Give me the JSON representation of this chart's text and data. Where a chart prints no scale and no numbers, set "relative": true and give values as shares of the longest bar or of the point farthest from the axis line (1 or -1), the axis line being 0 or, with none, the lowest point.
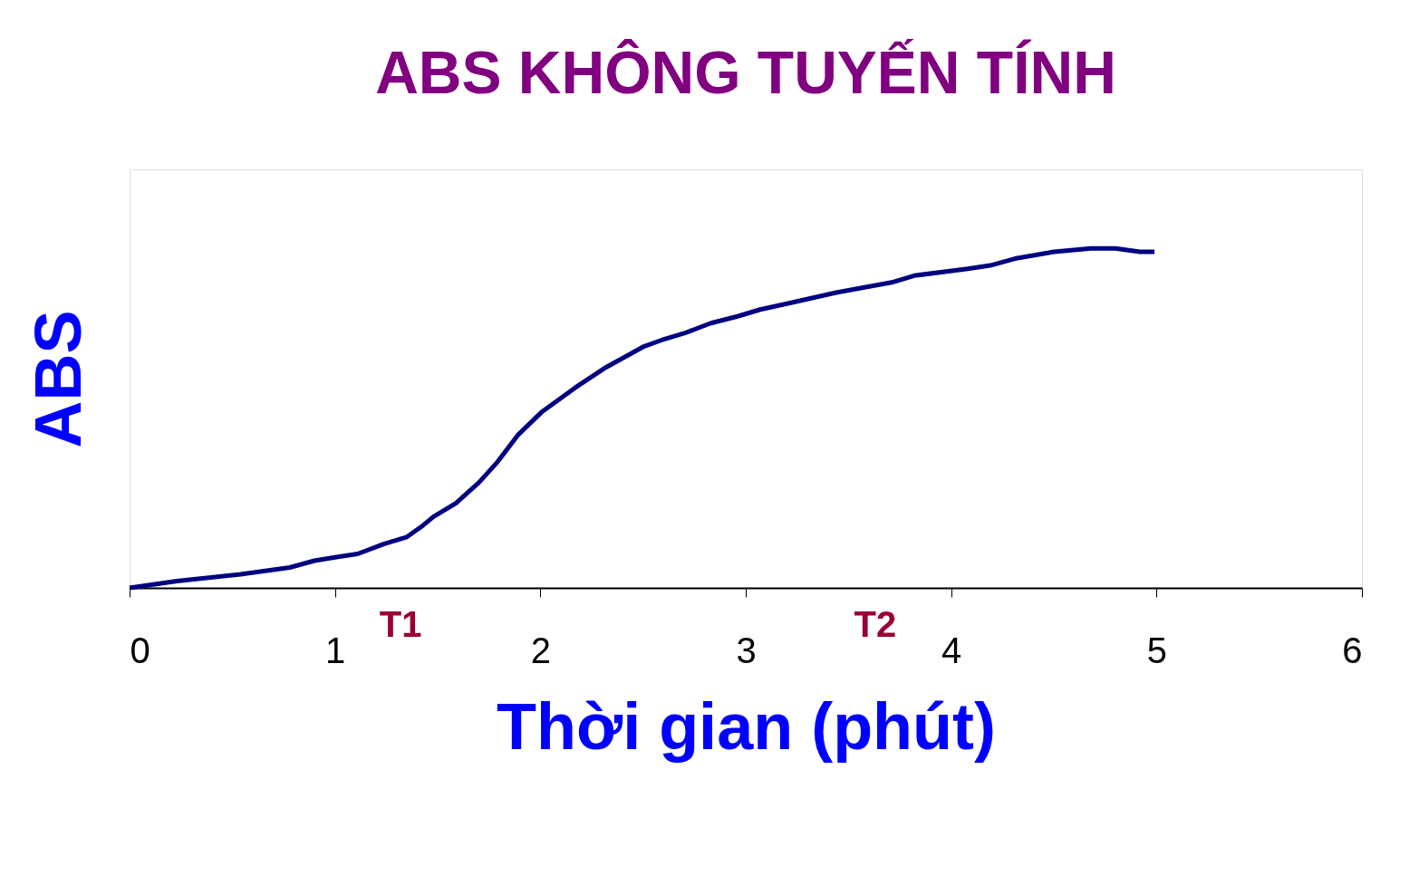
{
  "chart_data": {
    "type": "line",
    "title": "ABS KHÔNG TUYẾN TÍNH",
    "xlabel": "Thời gian (phút)",
    "ylabel": "ABS",
    "relative": true,
    "xlim": [
      0,
      6
    ],
    "xticks": [
      0,
      1,
      2,
      3,
      4,
      5,
      6
    ],
    "marker": "none",
    "line_style": "solid",
    "annotations": [
      "T1",
      "T2"
    ],
    "series": [
      {
        "color": "#000080",
        "x": [
          0,
          0.23,
          0.54,
          0.78,
          0.9,
          1.0,
          1.11,
          1.24,
          1.35,
          1.42,
          1.48,
          1.59,
          1.7,
          1.79,
          1.89,
          2.01,
          2.17,
          2.32,
          2.5,
          2.59,
          2.7,
          2.83,
          2.96,
          3.07,
          3.22,
          3.44,
          3.71,
          3.82,
          4.08,
          4.19,
          4.31,
          4.5,
          4.68,
          4.8,
          4.92,
          4.99
        ],
        "values": [
          0,
          0.02,
          0.04,
          0.06,
          0.08,
          0.09,
          0.1,
          0.13,
          0.15,
          0.18,
          0.21,
          0.25,
          0.31,
          0.37,
          0.45,
          0.52,
          0.59,
          0.65,
          0.71,
          0.73,
          0.75,
          0.78,
          0.8,
          0.82,
          0.84,
          0.87,
          0.9,
          0.92,
          0.94,
          0.95,
          0.97,
          0.99,
          1.0,
          1.0,
          0.99,
          0.99
        ]
      }
    ]
  }
}
